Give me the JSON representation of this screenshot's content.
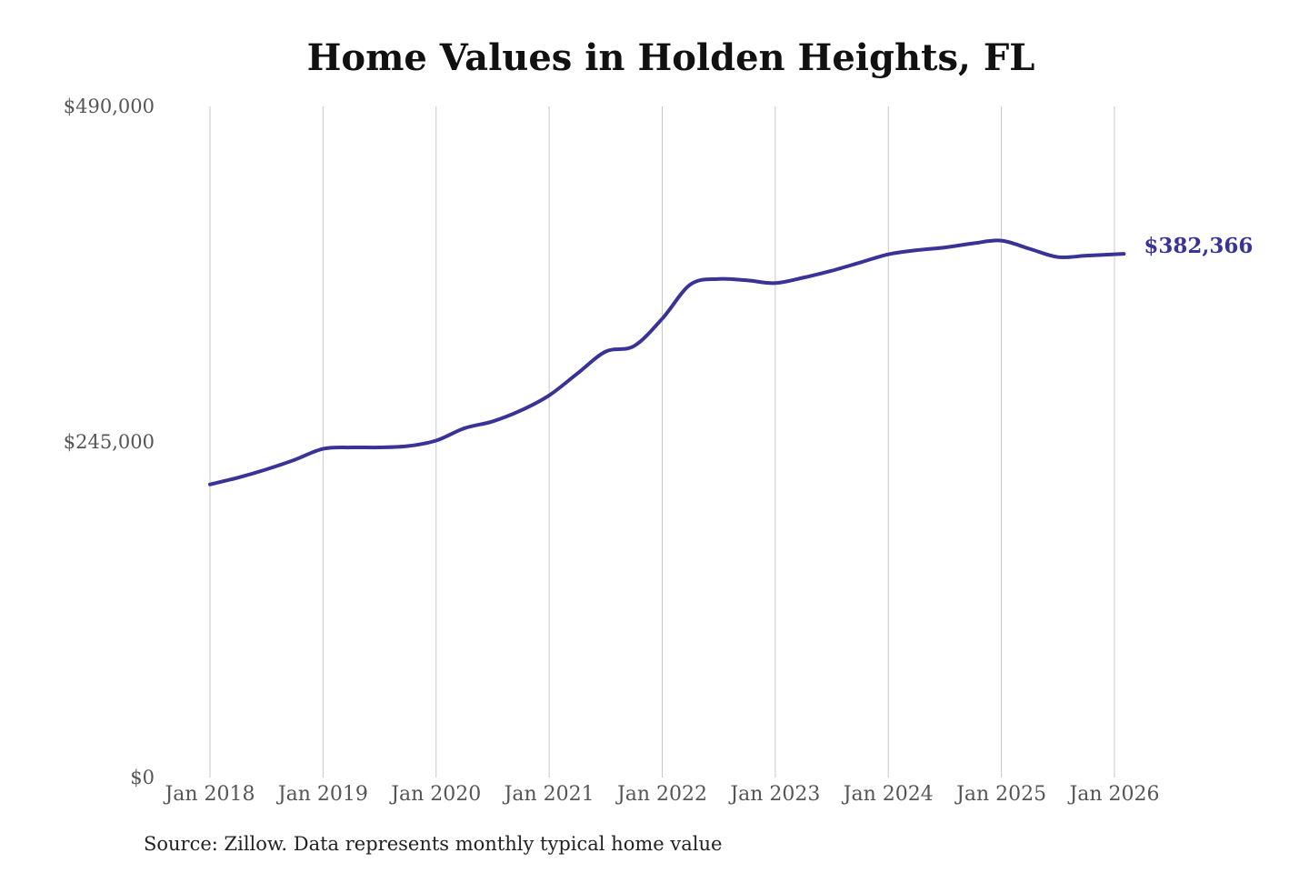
{
  "title": "Home Values in Holden Heights, FL",
  "source": "Source: Zillow. Data represents monthly typical home value",
  "colors": {
    "line": "#3a3397",
    "grid": "#c8c8c8",
    "text": "#555555",
    "title": "#111111"
  },
  "chart_data": {
    "type": "line",
    "title": "Home Values in Holden Heights, FL",
    "xlabel": "",
    "ylabel": "",
    "grid": "vertical",
    "ylim": [
      0,
      490000
    ],
    "y_ticks": [
      {
        "value": 0,
        "label": "$0"
      },
      {
        "value": 245000,
        "label": "$245,000"
      },
      {
        "value": 490000,
        "label": "$490,000"
      }
    ],
    "x_ticks": [
      {
        "date": "2018-01",
        "label": "Jan 2018"
      },
      {
        "date": "2019-01",
        "label": "Jan 2019"
      },
      {
        "date": "2020-01",
        "label": "Jan 2020"
      },
      {
        "date": "2021-01",
        "label": "Jan 2021"
      },
      {
        "date": "2022-01",
        "label": "Jan 2022"
      },
      {
        "date": "2023-01",
        "label": "Jan 2023"
      },
      {
        "date": "2024-01",
        "label": "Jan 2024"
      },
      {
        "date": "2025-01",
        "label": "Jan 2025"
      },
      {
        "date": "2026-01",
        "label": "Jan 2026"
      }
    ],
    "end_label": "$382,366",
    "series": [
      {
        "points": [
          [
            "2018-01",
            214000
          ],
          [
            "2018-04",
            219000
          ],
          [
            "2018-07",
            225000
          ],
          [
            "2018-10",
            232000
          ],
          [
            "2019-01",
            240000
          ],
          [
            "2019-04",
            241000
          ],
          [
            "2019-07",
            241000
          ],
          [
            "2019-10",
            242000
          ],
          [
            "2020-01",
            246000
          ],
          [
            "2020-04",
            255000
          ],
          [
            "2020-07",
            260000
          ],
          [
            "2020-10",
            268000
          ],
          [
            "2021-01",
            279000
          ],
          [
            "2021-04",
            295000
          ],
          [
            "2021-07",
            311000
          ],
          [
            "2021-10",
            315000
          ],
          [
            "2022-01",
            335000
          ],
          [
            "2022-04",
            360000
          ],
          [
            "2022-07",
            364000
          ],
          [
            "2022-10",
            363000
          ],
          [
            "2023-01",
            361000
          ],
          [
            "2023-04",
            365000
          ],
          [
            "2023-07",
            370000
          ],
          [
            "2023-10",
            376000
          ],
          [
            "2024-01",
            382000
          ],
          [
            "2024-04",
            385000
          ],
          [
            "2024-07",
            387000
          ],
          [
            "2024-10",
            390000
          ],
          [
            "2025-01",
            392000
          ],
          [
            "2025-04",
            386000
          ],
          [
            "2025-07",
            380000
          ],
          [
            "2025-10",
            381000
          ],
          [
            "2026-01",
            382000
          ],
          [
            "2026-02",
            382366
          ]
        ]
      }
    ]
  }
}
